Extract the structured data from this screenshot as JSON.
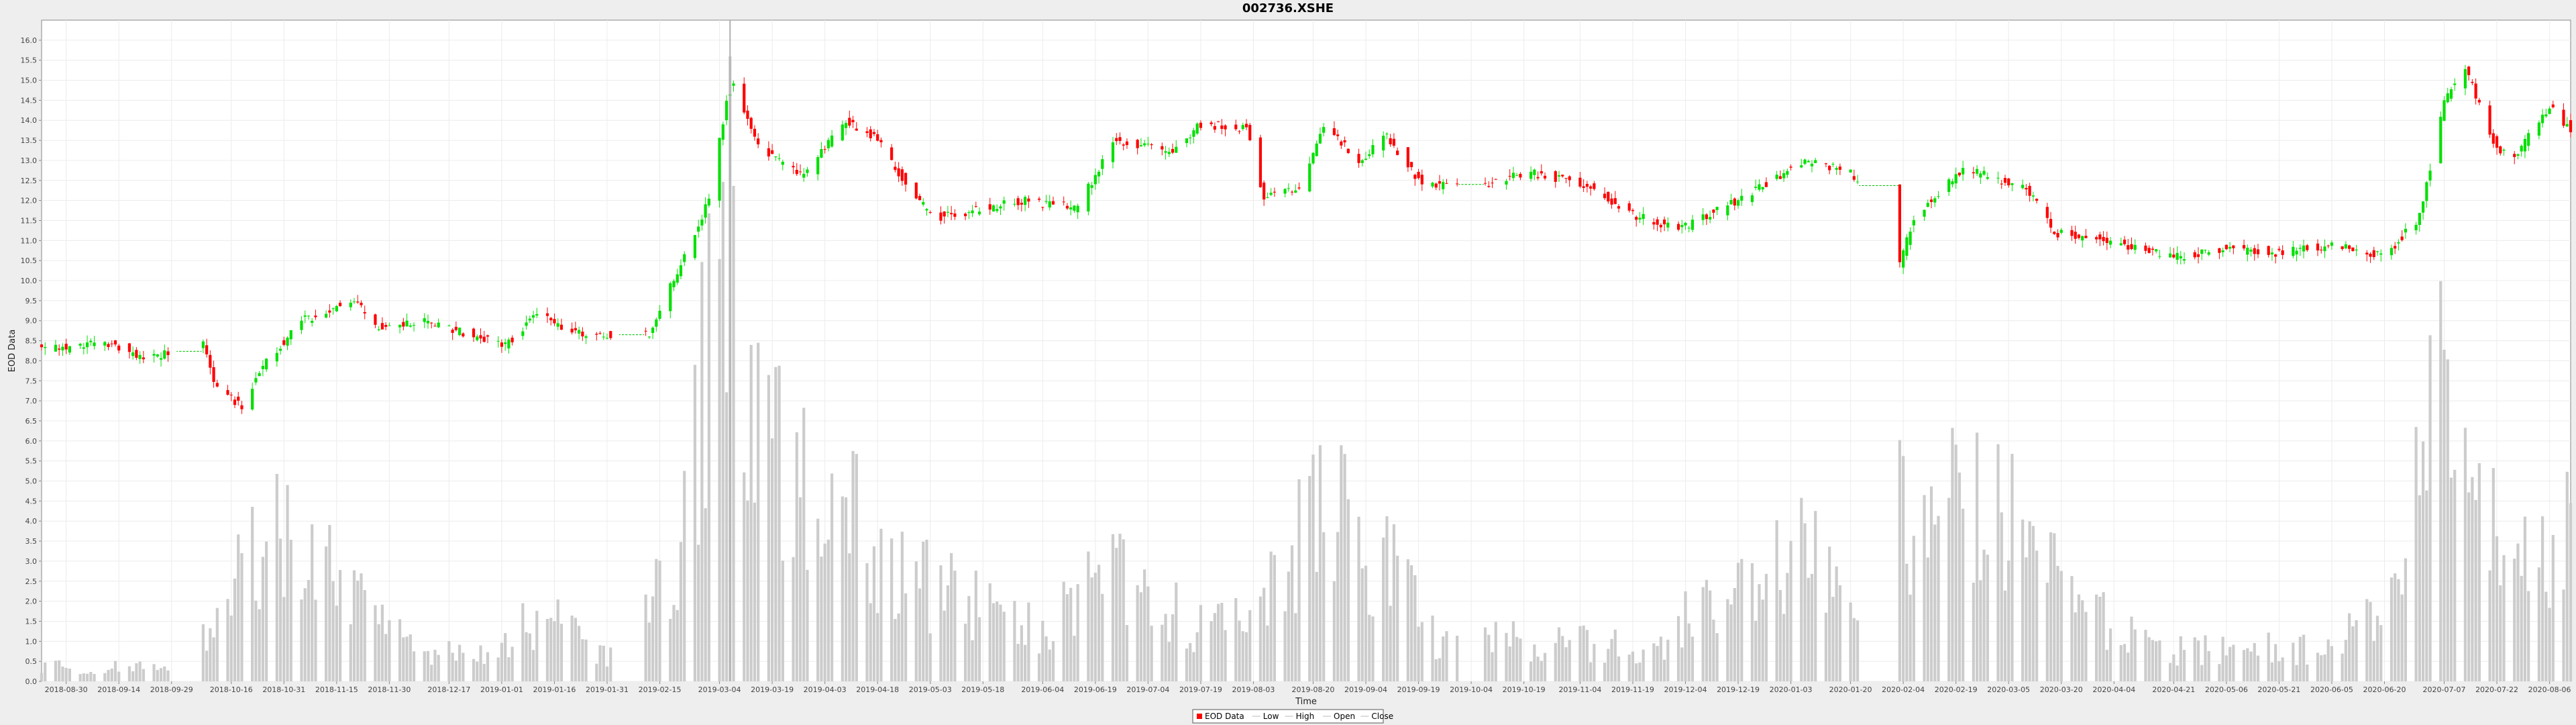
{
  "chart_data": {
    "type": "candlestick",
    "title": "002736.XSHE",
    "xlabel": "Time",
    "ylabel": "EOD Data",
    "ylim": [
      0.0,
      16.5
    ],
    "yticks": [
      0.0,
      0.5,
      1.0,
      1.5,
      2.0,
      2.5,
      3.0,
      3.5,
      4.0,
      4.5,
      5.0,
      5.5,
      6.0,
      6.5,
      7.0,
      7.5,
      8.0,
      8.5,
      9.0,
      9.5,
      10.0,
      10.5,
      11.0,
      11.5,
      12.0,
      12.5,
      13.0,
      13.5,
      14.0,
      14.5,
      15.0,
      15.5,
      16.0
    ],
    "ytick_labels": [
      "0.0",
      "0.5",
      "1.0",
      "1.5",
      "2.0",
      "2.5",
      "3.0",
      "3.5",
      "4.0",
      "4.5",
      "5.0",
      "5.5",
      "6.0",
      "6.5",
      "7.0",
      "7.5",
      "8.0",
      "8.5",
      "9.0",
      "9.5",
      "10.0",
      "10.5",
      "11.0",
      "11.5",
      "12.0",
      "12.5",
      "13.0",
      "13.5",
      "14.0",
      "14.5",
      "15.0",
      "15.5",
      "16.0"
    ],
    "xticks": [
      "2018-08-30",
      "2018-09-14",
      "2018-09-29",
      "2018-10-16",
      "2018-10-31",
      "2018-11-15",
      "2018-11-30",
      "2018-12-17",
      "2019-01-01",
      "2019-01-16",
      "2019-01-31",
      "2019-02-15",
      "2019-03-04",
      "2019-03-19",
      "2019-04-03",
      "2019-04-18",
      "2019-05-03",
      "2019-05-18",
      "2019-06-04",
      "2019-06-19",
      "2019-07-04",
      "2019-07-19",
      "2019-08-03",
      "2019-08-20",
      "2019-09-04",
      "2019-09-19",
      "2019-10-04",
      "2019-10-19",
      "2019-11-04",
      "2019-11-19",
      "2019-12-04",
      "2019-12-19",
      "2020-01-03",
      "2020-01-20",
      "2020-02-04",
      "2020-02-19",
      "2020-03-05",
      "2020-03-20",
      "2020-04-04",
      "2020-04-21",
      "2020-05-06",
      "2020-05-21",
      "2020-06-05",
      "2020-06-20",
      "2020-07-07",
      "2020-07-22",
      "2020-08-06"
    ],
    "x_range": [
      "2018-08-23",
      "2020-08-12"
    ],
    "grid": true,
    "legend_position": "bottom-center",
    "legend": [
      {
        "label": "EOD Data",
        "symbol": "box",
        "color": "#ff0000"
      },
      {
        "label": "Low",
        "symbol": "line",
        "color": "#bbbbbb"
      },
      {
        "label": "High",
        "symbol": "line",
        "color": "#bbbbbb"
      },
      {
        "label": "Open",
        "symbol": "line",
        "color": "#bbbbbb"
      },
      {
        "label": "Close",
        "symbol": "line",
        "color": "#bbbbbb"
      }
    ],
    "colors": {
      "up": "#00e000",
      "down": "#ff0000",
      "volume": "#cccccc",
      "marker": "#b0b0b0"
    },
    "marker_date": "2019-03-07",
    "anchors": [
      {
        "date": "2018-08-23",
        "close": 8.25
      },
      {
        "date": "2018-09-12",
        "close": 8.45
      },
      {
        "date": "2018-09-21",
        "close": 8.05
      },
      {
        "date": "2018-10-08",
        "close": 8.4
      },
      {
        "date": "2018-10-11",
        "close": 7.4
      },
      {
        "date": "2018-10-19",
        "close": 6.85
      },
      {
        "date": "2018-10-26",
        "close": 8.0
      },
      {
        "date": "2018-11-05",
        "close": 9.0
      },
      {
        "date": "2018-11-20",
        "close": 9.5
      },
      {
        "date": "2018-11-26",
        "close": 8.85
      },
      {
        "date": "2018-12-10",
        "close": 9.0
      },
      {
        "date": "2018-12-25",
        "close": 8.6
      },
      {
        "date": "2019-01-02",
        "close": 8.4
      },
      {
        "date": "2019-01-11",
        "close": 9.15
      },
      {
        "date": "2019-01-25",
        "close": 8.6
      },
      {
        "date": "2019-02-12",
        "close": 8.7
      },
      {
        "date": "2019-02-22",
        "close": 10.6
      },
      {
        "date": "2019-03-01",
        "close": 12.0
      },
      {
        "date": "2019-03-06",
        "close": 14.5
      },
      {
        "date": "2019-03-08",
        "close": 15.0
      },
      {
        "date": "2019-03-15",
        "close": 13.3
      },
      {
        "date": "2019-03-28",
        "close": 12.6
      },
      {
        "date": "2019-04-09",
        "close": 14.0
      },
      {
        "date": "2019-04-18",
        "close": 13.5
      },
      {
        "date": "2019-04-30",
        "close": 11.9
      },
      {
        "date": "2019-05-06",
        "close": 11.6
      },
      {
        "date": "2019-05-30",
        "close": 12.0
      },
      {
        "date": "2019-06-14",
        "close": 11.8
      },
      {
        "date": "2019-06-24",
        "close": 13.5
      },
      {
        "date": "2019-07-10",
        "close": 13.2
      },
      {
        "date": "2019-07-19",
        "close": 13.9
      },
      {
        "date": "2019-08-01",
        "close": 13.8
      },
      {
        "date": "2019-08-06",
        "close": 12.1
      },
      {
        "date": "2019-08-16",
        "close": 12.3
      },
      {
        "date": "2019-08-23",
        "close": 13.9
      },
      {
        "date": "2019-09-02",
        "close": 13.0
      },
      {
        "date": "2019-09-10",
        "close": 13.6
      },
      {
        "date": "2019-09-20",
        "close": 12.4
      },
      {
        "date": "2019-10-09",
        "close": 12.4
      },
      {
        "date": "2019-10-20",
        "close": 12.7
      },
      {
        "date": "2019-11-06",
        "close": 12.4
      },
      {
        "date": "2019-11-20",
        "close": 11.6
      },
      {
        "date": "2019-12-03",
        "close": 11.3
      },
      {
        "date": "2019-12-23",
        "close": 12.2
      },
      {
        "date": "2020-01-07",
        "close": 13.0
      },
      {
        "date": "2020-01-20",
        "close": 12.7
      },
      {
        "date": "2020-02-03",
        "close": 10.4
      },
      {
        "date": "2020-02-07",
        "close": 11.6
      },
      {
        "date": "2020-02-21",
        "close": 12.8
      },
      {
        "date": "2020-03-10",
        "close": 12.3
      },
      {
        "date": "2020-03-18",
        "close": 11.2
      },
      {
        "date": "2020-04-02",
        "close": 11.0
      },
      {
        "date": "2020-04-21",
        "close": 10.6
      },
      {
        "date": "2020-05-06",
        "close": 10.8
      },
      {
        "date": "2020-05-21",
        "close": 10.7
      },
      {
        "date": "2020-06-05",
        "close": 10.9
      },
      {
        "date": "2020-06-20",
        "close": 10.6
      },
      {
        "date": "2020-06-30",
        "close": 11.6
      },
      {
        "date": "2020-07-07",
        "close": 14.5
      },
      {
        "date": "2020-07-13",
        "close": 15.3
      },
      {
        "date": "2020-07-22",
        "close": 13.3
      },
      {
        "date": "2020-07-27",
        "close": 13.1
      },
      {
        "date": "2020-08-06",
        "close": 14.3
      },
      {
        "date": "2020-08-12",
        "close": 13.8
      }
    ],
    "volume_anchors": [
      {
        "date": "2018-08-23",
        "volume": 0.4
      },
      {
        "date": "2018-09-28",
        "volume": 0.4
      },
      {
        "date": "2018-10-12",
        "volume": 1.4
      },
      {
        "date": "2018-10-22",
        "volume": 3.3
      },
      {
        "date": "2018-10-31",
        "volume": 3.8
      },
      {
        "date": "2018-11-14",
        "volume": 2.8
      },
      {
        "date": "2018-12-05",
        "volume": 0.9
      },
      {
        "date": "2018-12-25",
        "volume": 0.7
      },
      {
        "date": "2019-01-11",
        "volume": 1.7
      },
      {
        "date": "2019-02-01",
        "volume": 0.7
      },
      {
        "date": "2019-02-20",
        "volume": 3.0
      },
      {
        "date": "2019-03-06",
        "volume": 12.5
      },
      {
        "date": "2019-03-14",
        "volume": 6.5
      },
      {
        "date": "2019-04-02",
        "volume": 4.8
      },
      {
        "date": "2019-04-23",
        "volume": 3.3
      },
      {
        "date": "2019-05-13",
        "volume": 2.0
      },
      {
        "date": "2019-06-05",
        "volume": 1.3
      },
      {
        "date": "2019-06-24",
        "volume": 3.3
      },
      {
        "date": "2019-07-15",
        "volume": 1.5
      },
      {
        "date": "2019-08-02",
        "volume": 1.5
      },
      {
        "date": "2019-08-22",
        "volume": 4.8
      },
      {
        "date": "2019-09-04",
        "volume": 3.8
      },
      {
        "date": "2019-09-25",
        "volume": 1.0
      },
      {
        "date": "2019-10-14",
        "volume": 1.1
      },
      {
        "date": "2019-11-06",
        "volume": 1.0
      },
      {
        "date": "2019-11-25",
        "volume": 0.8
      },
      {
        "date": "2019-12-13",
        "volume": 2.3
      },
      {
        "date": "2020-01-07",
        "volume": 4.0
      },
      {
        "date": "2020-01-20",
        "volume": 1.5
      },
      {
        "date": "2020-02-03",
        "volume": 4.6
      },
      {
        "date": "2020-02-25",
        "volume": 4.6
      },
      {
        "date": "2020-03-10",
        "volume": 3.8
      },
      {
        "date": "2020-03-24",
        "volume": 2.0
      },
      {
        "date": "2020-04-14",
        "volume": 0.9
      },
      {
        "date": "2020-05-06",
        "volume": 0.8
      },
      {
        "date": "2020-06-05",
        "volume": 0.9
      },
      {
        "date": "2020-06-24",
        "volume": 2.0
      },
      {
        "date": "2020-07-06",
        "volume": 9.0
      },
      {
        "date": "2020-07-13",
        "volume": 6.0
      },
      {
        "date": "2020-07-24",
        "volume": 3.0
      },
      {
        "date": "2020-08-12",
        "volume": 4.0
      }
    ],
    "gaps": [
      [
        "2018-10-01",
        "2018-10-07"
      ],
      [
        "2019-02-04",
        "2019-02-10"
      ],
      [
        "2019-10-01",
        "2019-10-07"
      ],
      [
        "2020-01-23",
        "2020-02-02"
      ]
    ]
  }
}
